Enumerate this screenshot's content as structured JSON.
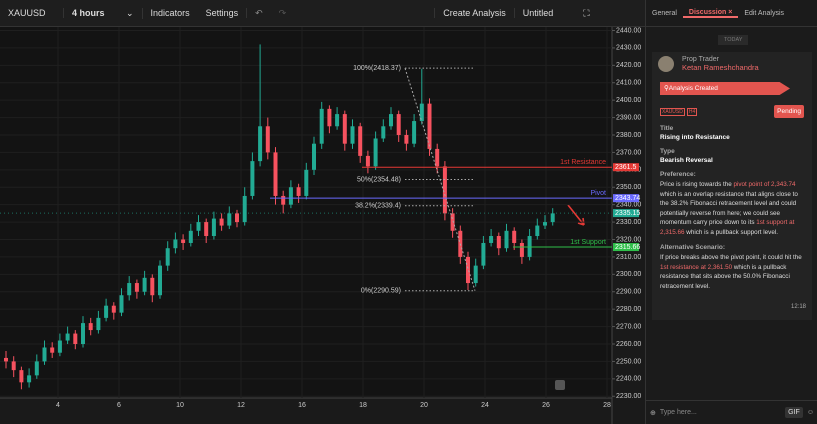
{
  "toolbar": {
    "symbol": "XAUUSD",
    "interval": "4 hours",
    "indicators": "Indicators",
    "settings": "Settings",
    "create": "Create Analysis",
    "layout": "Untitled"
  },
  "chart_data": {
    "type": "candlestick",
    "up_color": "#22ab94",
    "down_color": "#f7525f",
    "xtick_labels": [
      "4",
      "6",
      "10",
      "12",
      "16",
      "18",
      "20",
      "24",
      "26",
      "28"
    ],
    "ylim": [
      2229,
      2442
    ],
    "yticks": [
      {
        "value": 2230,
        "label": "2230.00"
      },
      {
        "value": 2240,
        "label": "2240.00"
      },
      {
        "value": 2250,
        "label": "2250.00"
      },
      {
        "value": 2260,
        "label": "2260.00"
      },
      {
        "value": 2270,
        "label": "2270.00"
      },
      {
        "value": 2280,
        "label": "2280.00"
      },
      {
        "value": 2290,
        "label": "2290.00"
      },
      {
        "value": 2300,
        "label": "2300.00"
      },
      {
        "value": 2310,
        "label": "2310.00"
      },
      {
        "value": 2320,
        "label": "2320.00"
      },
      {
        "value": 2330,
        "label": "2330.00"
      },
      {
        "value": 2340,
        "label": "2340.00"
      },
      {
        "value": 2350,
        "label": "2350.00"
      },
      {
        "value": 2360,
        "label": "2360.00"
      },
      {
        "value": 2370,
        "label": "2370.00"
      },
      {
        "value": 2380,
        "label": "2380.00"
      },
      {
        "value": 2390,
        "label": "2390.00"
      },
      {
        "value": 2400,
        "label": "2400.00"
      },
      {
        "value": 2410,
        "label": "2410.00"
      },
      {
        "value": 2420,
        "label": "2420.00"
      },
      {
        "value": 2430,
        "label": "2430.00"
      },
      {
        "value": 2440,
        "label": "2440.00"
      }
    ],
    "candles": [
      [
        2252,
        2256,
        2246,
        2250
      ],
      [
        2250,
        2253,
        2241,
        2245
      ],
      [
        2245,
        2247,
        2234,
        2238
      ],
      [
        2238,
        2246,
        2235,
        2242
      ],
      [
        2242,
        2254,
        2240,
        2250
      ],
      [
        2250,
        2262,
        2248,
        2258
      ],
      [
        2258,
        2261,
        2252,
        2255
      ],
      [
        2255,
        2266,
        2253,
        2262
      ],
      [
        2262,
        2270,
        2260,
        2266
      ],
      [
        2266,
        2268,
        2257,
        2260
      ],
      [
        2260,
        2276,
        2258,
        2272
      ],
      [
        2272,
        2275,
        2265,
        2268
      ],
      [
        2268,
        2279,
        2266,
        2275
      ],
      [
        2275,
        2286,
        2273,
        2282
      ],
      [
        2282,
        2284,
        2274,
        2278
      ],
      [
        2278,
        2292,
        2276,
        2288
      ],
      [
        2288,
        2299,
        2285,
        2295
      ],
      [
        2295,
        2297,
        2286,
        2290
      ],
      [
        2290,
        2302,
        2288,
        2298
      ],
      [
        2298,
        2300,
        2284,
        2288
      ],
      [
        2288,
        2308,
        2286,
        2305
      ],
      [
        2305,
        2319,
        2302,
        2315
      ],
      [
        2315,
        2324,
        2312,
        2320
      ],
      [
        2320,
        2323,
        2314,
        2318
      ],
      [
        2318,
        2329,
        2316,
        2325
      ],
      [
        2325,
        2334,
        2322,
        2330
      ],
      [
        2330,
        2332,
        2318,
        2322
      ],
      [
        2322,
        2336,
        2320,
        2332
      ],
      [
        2332,
        2335,
        2325,
        2328
      ],
      [
        2328,
        2339,
        2326,
        2335
      ],
      [
        2335,
        2337,
        2327,
        2330
      ],
      [
        2330,
        2350,
        2328,
        2345
      ],
      [
        2345,
        2370,
        2343,
        2365
      ],
      [
        2365,
        2432,
        2362,
        2385
      ],
      [
        2385,
        2390,
        2366,
        2370
      ],
      [
        2370,
        2373,
        2340,
        2345
      ],
      [
        2345,
        2348,
        2335,
        2340
      ],
      [
        2340,
        2354,
        2338,
        2350
      ],
      [
        2350,
        2352,
        2341,
        2345
      ],
      [
        2345,
        2364,
        2343,
        2360
      ],
      [
        2360,
        2379,
        2357,
        2375
      ],
      [
        2375,
        2399,
        2372,
        2395
      ],
      [
        2395,
        2397,
        2381,
        2385
      ],
      [
        2385,
        2396,
        2383,
        2392
      ],
      [
        2392,
        2394,
        2371,
        2375
      ],
      [
        2375,
        2389,
        2372,
        2385
      ],
      [
        2385,
        2387,
        2364,
        2368
      ],
      [
        2368,
        2371,
        2358,
        2362
      ],
      [
        2362,
        2382,
        2360,
        2378
      ],
      [
        2378,
        2389,
        2376,
        2385
      ],
      [
        2385,
        2396,
        2383,
        2392
      ],
      [
        2392,
        2394,
        2376,
        2380
      ],
      [
        2380,
        2383,
        2371,
        2375
      ],
      [
        2375,
        2392,
        2373,
        2388
      ],
      [
        2388,
        2418,
        2386,
        2398
      ],
      [
        2398,
        2401,
        2368,
        2372
      ],
      [
        2372,
        2375,
        2358,
        2362
      ],
      [
        2362,
        2365,
        2331,
        2335
      ],
      [
        2335,
        2338,
        2321,
        2325
      ],
      [
        2325,
        2328,
        2306,
        2310
      ],
      [
        2310,
        2313,
        2291,
        2295
      ],
      [
        2295,
        2309,
        2293,
        2305
      ],
      [
        2305,
        2322,
        2303,
        2318
      ],
      [
        2318,
        2326,
        2316,
        2322
      ],
      [
        2322,
        2324,
        2311,
        2315
      ],
      [
        2315,
        2329,
        2313,
        2325
      ],
      [
        2325,
        2327,
        2314,
        2318
      ],
      [
        2318,
        2320,
        2306,
        2310
      ],
      [
        2310,
        2326,
        2308,
        2322
      ],
      [
        2322,
        2332,
        2320,
        2328
      ],
      [
        2328,
        2334,
        2326,
        2330
      ],
      [
        2330,
        2338,
        2328,
        2335
      ]
    ],
    "levels": [
      {
        "name": "1st Resistance",
        "value": 2361.5,
        "color": "#e53935"
      },
      {
        "name": "Pivot",
        "value": 2343.74,
        "color": "#6a6aff"
      },
      {
        "name": "1st Support",
        "value": 2315.66,
        "color": "#2fbf4a"
      }
    ],
    "last_price": 2335.15,
    "fib_levels": [
      {
        "value": 2418.37,
        "label": "100%(2418.37)"
      },
      {
        "value": 2354.48,
        "label": "50%(2354.48)"
      },
      {
        "value": 2339.4,
        "label": "38.2%(2339.4)"
      },
      {
        "value": 2290.59,
        "label": "0%(2290.59)"
      }
    ]
  },
  "panel": {
    "tabs": [
      "General",
      "Discussion",
      "Edit Analysis"
    ],
    "today": "TODAY",
    "role": "Prop Trader",
    "author": "Ketan Rameshchandra",
    "event": "Analysis Created",
    "tags": [
      "XAUUSD",
      "H4"
    ],
    "status": "Pending",
    "title_label": "Title",
    "title": "Rising into Resistance",
    "type_label": "Type",
    "type": "Bearish Reversal",
    "preference_label": "Preference:",
    "preference": [
      "Price is rising towards the ",
      "pivot point of 2,343.74",
      " which is an overlap resistance that aligns close to the 38.2% Fibonacci retracement level and could potentially reverse from here; we could see momentum carry price down to its ",
      "1st support at 2,315.66",
      " which is a pullback support level."
    ],
    "alternative_label": "Alternative Scenario:",
    "alternative": [
      "If price breaks above the pivot point, it could hit the ",
      "1st resistance at 2,361.50",
      " which is a pullback resistance that sits above the 50.0% Fibonacci retracement level."
    ],
    "time": "12:18",
    "input": "Type here...",
    "gif": "GIF"
  }
}
